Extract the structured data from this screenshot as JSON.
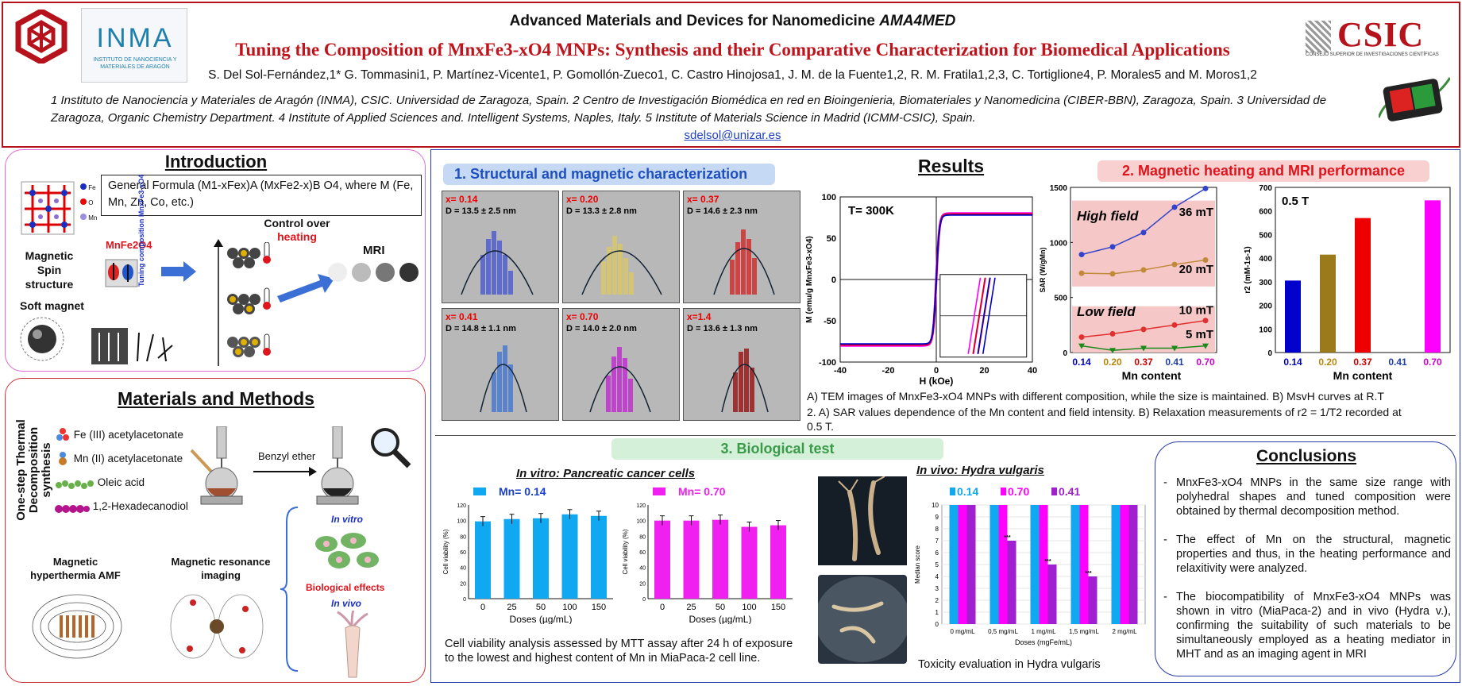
{
  "header": {
    "conference": "Advanced Materials and Devices for Nanomedicine",
    "conference_acronym": "AMA4MED",
    "title": "Tuning the Composition of MnxFe3-xO4 MNPs: Synthesis and their Comparative Characterization for Biomedical Applications",
    "authors": "S. Del Sol-Fernández,1* G. Tommasini1, P. Martínez-Vicente1, P. Gomollón-Zueco1, C. Castro Hinojosa1, J. M. de la Fuente1,2, R. M. Fratila1,2,3, C. Tortiglione4, P. Morales5 and M. Moros1,2",
    "affiliations": "1 Instituto de Nanociencia y Materiales de Aragón (INMA), CSIC. Universidad de Zaragoza, Spain. 2 Centro de Investigación Biomédica en red en Bioingenieria, Biomateriales y Nanomedicina (CIBER-BBN), Zaragoza, Spain. 3 Universidad de Zaragoza, Organic Chemistry Department. 4 Institute of Applied Sciences and. Intelligent Systems, Naples, Italy. 5 Institute of Materials Science in Madrid (ICMM-CSIC), Spain.",
    "email": "sdelsol@unizar.es",
    "logo_left": "INMA",
    "logo_left_sub": "INSTITUTO DE NANOCIENCIA Y MATERIALES DE ARAGÓN",
    "logo_right": "CSIC",
    "logo_right_sub": "CONSEJO SUPERIOR DE INVESTIGACIONES CIENTÍFICAS"
  },
  "introduction": {
    "title": "Introduction",
    "formula": "General Formula (M1-xFex)A (MxFe2-x)B O4, where M (Fe, Mn, Zn, Co, etc.)",
    "legend": [
      "Fe",
      "O",
      "Mn"
    ],
    "spin_label": "Magnetic Spin structure",
    "compound": "MnFe2O4",
    "soft_magnet": "Soft magnet",
    "control_label": "Control over",
    "control_highlight": "heating",
    "tuning_label": "Tuning composition MnxFe3-xO4",
    "mri_label": "MRI",
    "colors": {
      "accent": "#e0141c",
      "arrow": "#3b6fd6"
    }
  },
  "methods": {
    "title": "Materials and Methods",
    "side_label": "One-step Thermal Decomposition synthesis",
    "reagents": [
      "Fe (III) acetylacetonate",
      "Mn (II) acetylacetonate",
      "Oleic acid",
      "1,2-Hexadecanodiol"
    ],
    "solvent": "Benzyl ether",
    "hyperthermia": "Magnetic hyperthermia AMF",
    "mri": "Magnetic resonance imaging",
    "in_vitro": "In vitro",
    "bio_effects": "Biological effects",
    "in_vivo": "In vivo"
  },
  "results": {
    "title": "Results",
    "section1": "1. Structural and magnetic characterization",
    "section2": "2. Magnetic heating and MRI performance",
    "section3": "3. Biological test",
    "tem": [
      {
        "x": "x= 0.14",
        "d": "D = 13.5 ± 2.5 nm"
      },
      {
        "x": "x= 0.20",
        "d": "D = 13.3 ± 2.8 nm"
      },
      {
        "x": "x= 0.37",
        "d": "D = 14.6 ± 2.3 nm"
      },
      {
        "x": "x= 0.41",
        "d": "D = 14.8 ± 1.1 nm"
      },
      {
        "x": "x= 0.70",
        "d": "D = 14.0 ± 2.0 nm"
      },
      {
        "x": "x=1.4",
        "d": "D = 13.6 ± 1.3 nm"
      }
    ],
    "caption1": "A) TEM images of MnxFe3-xO4 MNPs with different composition, while the size is maintained. B) MsvH curves at R.T",
    "caption2": "2. A) SAR values dependence of the Mn content and field intensity. B) Relaxation measurements of r2 = 1/T2 recorded at 0.5 T.",
    "bio_in_vitro": "In vitro: Pancreatic cancer cells",
    "bio_in_vivo": "In vivo: Hydra vulgaris",
    "viability_caption": "Cell viability analysis assessed by MTT assay after 24 h of exposure to the lowest and highest content of Mn in MiaPaca-2 cell line.",
    "toxicity_caption": "Toxicity evaluation in Hydra vulgaris"
  },
  "conclusions": {
    "title": "Conclusions",
    "items": [
      "MnxFe3-xO4 MNPs in the same size range with polyhedral shapes and tuned composition were obtained by thermal decomposition method.",
      "The effect of Mn on the structural, magnetic properties and thus, in the heating performance and relaxitivity were analyzed.",
      "The biocompatibility of MnxFe3-xO4 MNPs was shown in vitro (MiaPaca-2) and in vivo (Hydra v.), confirming the suitability of such materials to be simultaneously employed as a heating mediator in MHT and as an imaging agent in MRI"
    ]
  },
  "chart_data": [
    {
      "type": "line",
      "id": "mvh",
      "annotation": "T= 300K",
      "xlabel": "H (kOe)",
      "ylabel": "M (emu/g MnxFe3-xO4)",
      "xlim": [
        -40,
        40
      ],
      "ylim": [
        -100,
        100
      ],
      "xticks": [
        -40,
        -20,
        0,
        20,
        40
      ],
      "yticks": [
        -100,
        -50,
        0,
        50,
        100
      ],
      "series": [
        {
          "color": "#ff00ff",
          "ms": 80
        },
        {
          "color": "#d40000",
          "ms": 79
        },
        {
          "color": "#0000cc",
          "ms": 78
        }
      ]
    },
    {
      "type": "line",
      "id": "sar",
      "ylabel": "SAR (W/gMn)",
      "xlabel": "Mn content",
      "categories": [
        "0.14",
        "0.20",
        "0.37",
        "0.41",
        "0.70"
      ],
      "category_colors": [
        "#0000cc",
        "#b8860b",
        "#d40000",
        "#1f3f9f",
        "#d000d0"
      ],
      "ylim": [
        0,
        1500
      ],
      "yticks": [
        0,
        500,
        1000,
        1500
      ],
      "labels": {
        "high": "High field",
        "low": "Low field"
      },
      "series": [
        {
          "name": "36 mT",
          "color": "#3344cc",
          "values": [
            890,
            960,
            1090,
            1320,
            1490
          ]
        },
        {
          "name": "20 mT",
          "color": "#c08a3a",
          "values": [
            720,
            715,
            750,
            800,
            840
          ]
        },
        {
          "name": "10 mT",
          "color": "#e03030",
          "values": [
            140,
            170,
            210,
            250,
            290
          ]
        },
        {
          "name": "5 mT",
          "color": "#1a8a1a",
          "values": [
            60,
            20,
            40,
            40,
            60
          ]
        }
      ]
    },
    {
      "type": "bar",
      "id": "r2",
      "annotation": "0.5 T",
      "ylabel": "r2 (mM-1s-1)",
      "xlabel": "Mn content",
      "categories": [
        "0.14",
        "0.20",
        "0.37",
        "0.41",
        "0.70"
      ],
      "category_colors": [
        "#0000cc",
        "#b8860b",
        "#d40000",
        "#1f3f9f",
        "#d000d0"
      ],
      "values": [
        305,
        415,
        570,
        null,
        645
      ],
      "bar_colors": [
        "#0000cc",
        "#9a7a1a",
        "#ee0000",
        "",
        "#ff00ff"
      ],
      "ylim": [
        0,
        700
      ],
      "yticks": [
        0,
        100,
        200,
        300,
        400,
        500,
        600,
        700
      ]
    },
    {
      "type": "bar",
      "id": "via014",
      "legend": "Mn= 0.14",
      "color": "#10a8f0",
      "legend_color": "#1a3fcf",
      "ylabel": "Cell viability (%)",
      "xlabel": "Doses (µg/mL)",
      "categories": [
        "0",
        "25",
        "50",
        "100",
        "150"
      ],
      "values": [
        99,
        102,
        103,
        108,
        106
      ],
      "ylim": [
        0,
        120
      ],
      "yticks": [
        0,
        20,
        40,
        60,
        80,
        100,
        120
      ]
    },
    {
      "type": "bar",
      "id": "via070",
      "legend": "Mn= 0.70",
      "color": "#f020f0",
      "legend_color": "#f020f0",
      "ylabel": "Cell viability (%)",
      "xlabel": "Doses (µg/mL)",
      "categories": [
        "0",
        "25",
        "50",
        "100",
        "150"
      ],
      "values": [
        100,
        100,
        101,
        92,
        94
      ],
      "ylim": [
        0,
        120
      ],
      "yticks": [
        0,
        20,
        40,
        60,
        80,
        100,
        120
      ]
    },
    {
      "type": "bar",
      "id": "hydra",
      "ylabel": "Median score",
      "xlabel": "Doses (mgFe/mL)",
      "categories": [
        "0 mg/mL",
        "0,5 mg/mL",
        "1 mg/mL",
        "1,5 mg/mL",
        "2 mg/mL"
      ],
      "series": [
        {
          "name": "0.14",
          "color": "#10a8f0",
          "values": [
            10,
            10,
            10,
            10,
            10
          ]
        },
        {
          "name": "0.70",
          "color": "#ff00ff",
          "values": [
            10,
            10,
            10,
            10,
            10
          ]
        },
        {
          "name": "0.41",
          "color": "#a020d0",
          "values": [
            10,
            7,
            5,
            4,
            10
          ]
        }
      ],
      "sig": [
        "",
        "***",
        "***",
        "***",
        ""
      ],
      "ylim": [
        0,
        10
      ],
      "yticks": [
        0,
        1,
        2,
        3,
        4,
        5,
        6,
        7,
        8,
        9,
        10
      ]
    }
  ]
}
